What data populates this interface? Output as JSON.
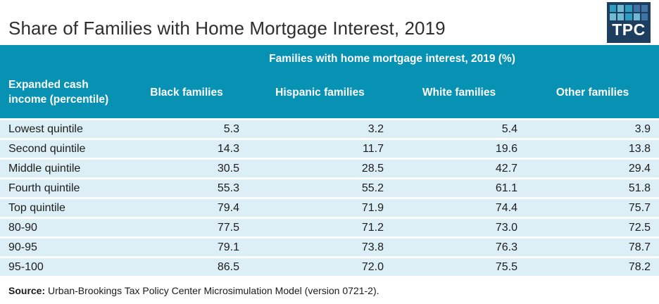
{
  "page": {
    "title": "Share of Families with Home Mortgage Interest, 2019",
    "source_label": "Source:",
    "source_text": " Urban-Brookings Tax Policy Center Microsimulation Model (version 0721-2)."
  },
  "logo": {
    "text": "TPC",
    "bg_color": "#1d3e5f",
    "grid_colors": [
      "#2d9cbe",
      "#6fb9d3",
      "#2d9cbe",
      "#3e73a4",
      "#3e73a4",
      "#6fb9d3",
      "#6fb9d3",
      "#2d9cbe",
      "#6fb9d3",
      "#3e73a4"
    ]
  },
  "colors": {
    "header_teal": "#0792b4",
    "row_blue": "#dceef6",
    "separator": "#ffffff"
  },
  "chart_data": {
    "type": "table",
    "title": "Share of Families with Home Mortgage Interest, 2019",
    "span_header": "Families with home mortgage interest, 2019 (%)",
    "row_header_label": "Expanded cash income (percentile)",
    "columns": [
      "Black families",
      "Hispanic families",
      "White families",
      "Other families"
    ],
    "rows": [
      {
        "label": "Lowest quintile",
        "values": [
          "5.3",
          "3.2",
          "5.4",
          "3.9"
        ]
      },
      {
        "label": "Second quintile",
        "values": [
          "14.3",
          "11.7",
          "19.6",
          "13.8"
        ]
      },
      {
        "label": "Middle quintile",
        "values": [
          "30.5",
          "28.5",
          "42.7",
          "29.4"
        ]
      },
      {
        "label": "Fourth quintile",
        "values": [
          "55.3",
          "55.2",
          "61.1",
          "51.8"
        ]
      },
      {
        "label": "Top quintile",
        "values": [
          "79.4",
          "71.9",
          "74.4",
          "75.7"
        ]
      },
      {
        "label": "80-90",
        "values": [
          "77.5",
          "71.2",
          "73.0",
          "72.5"
        ]
      },
      {
        "label": "90-95",
        "values": [
          "79.1",
          "73.8",
          "76.3",
          "78.7"
        ]
      },
      {
        "label": "95-100",
        "values": [
          "86.5",
          "72.0",
          "75.5",
          "78.2"
        ]
      }
    ],
    "source": "Urban-Brookings Tax Policy Center Microsimulation Model (version 0721-2)."
  }
}
